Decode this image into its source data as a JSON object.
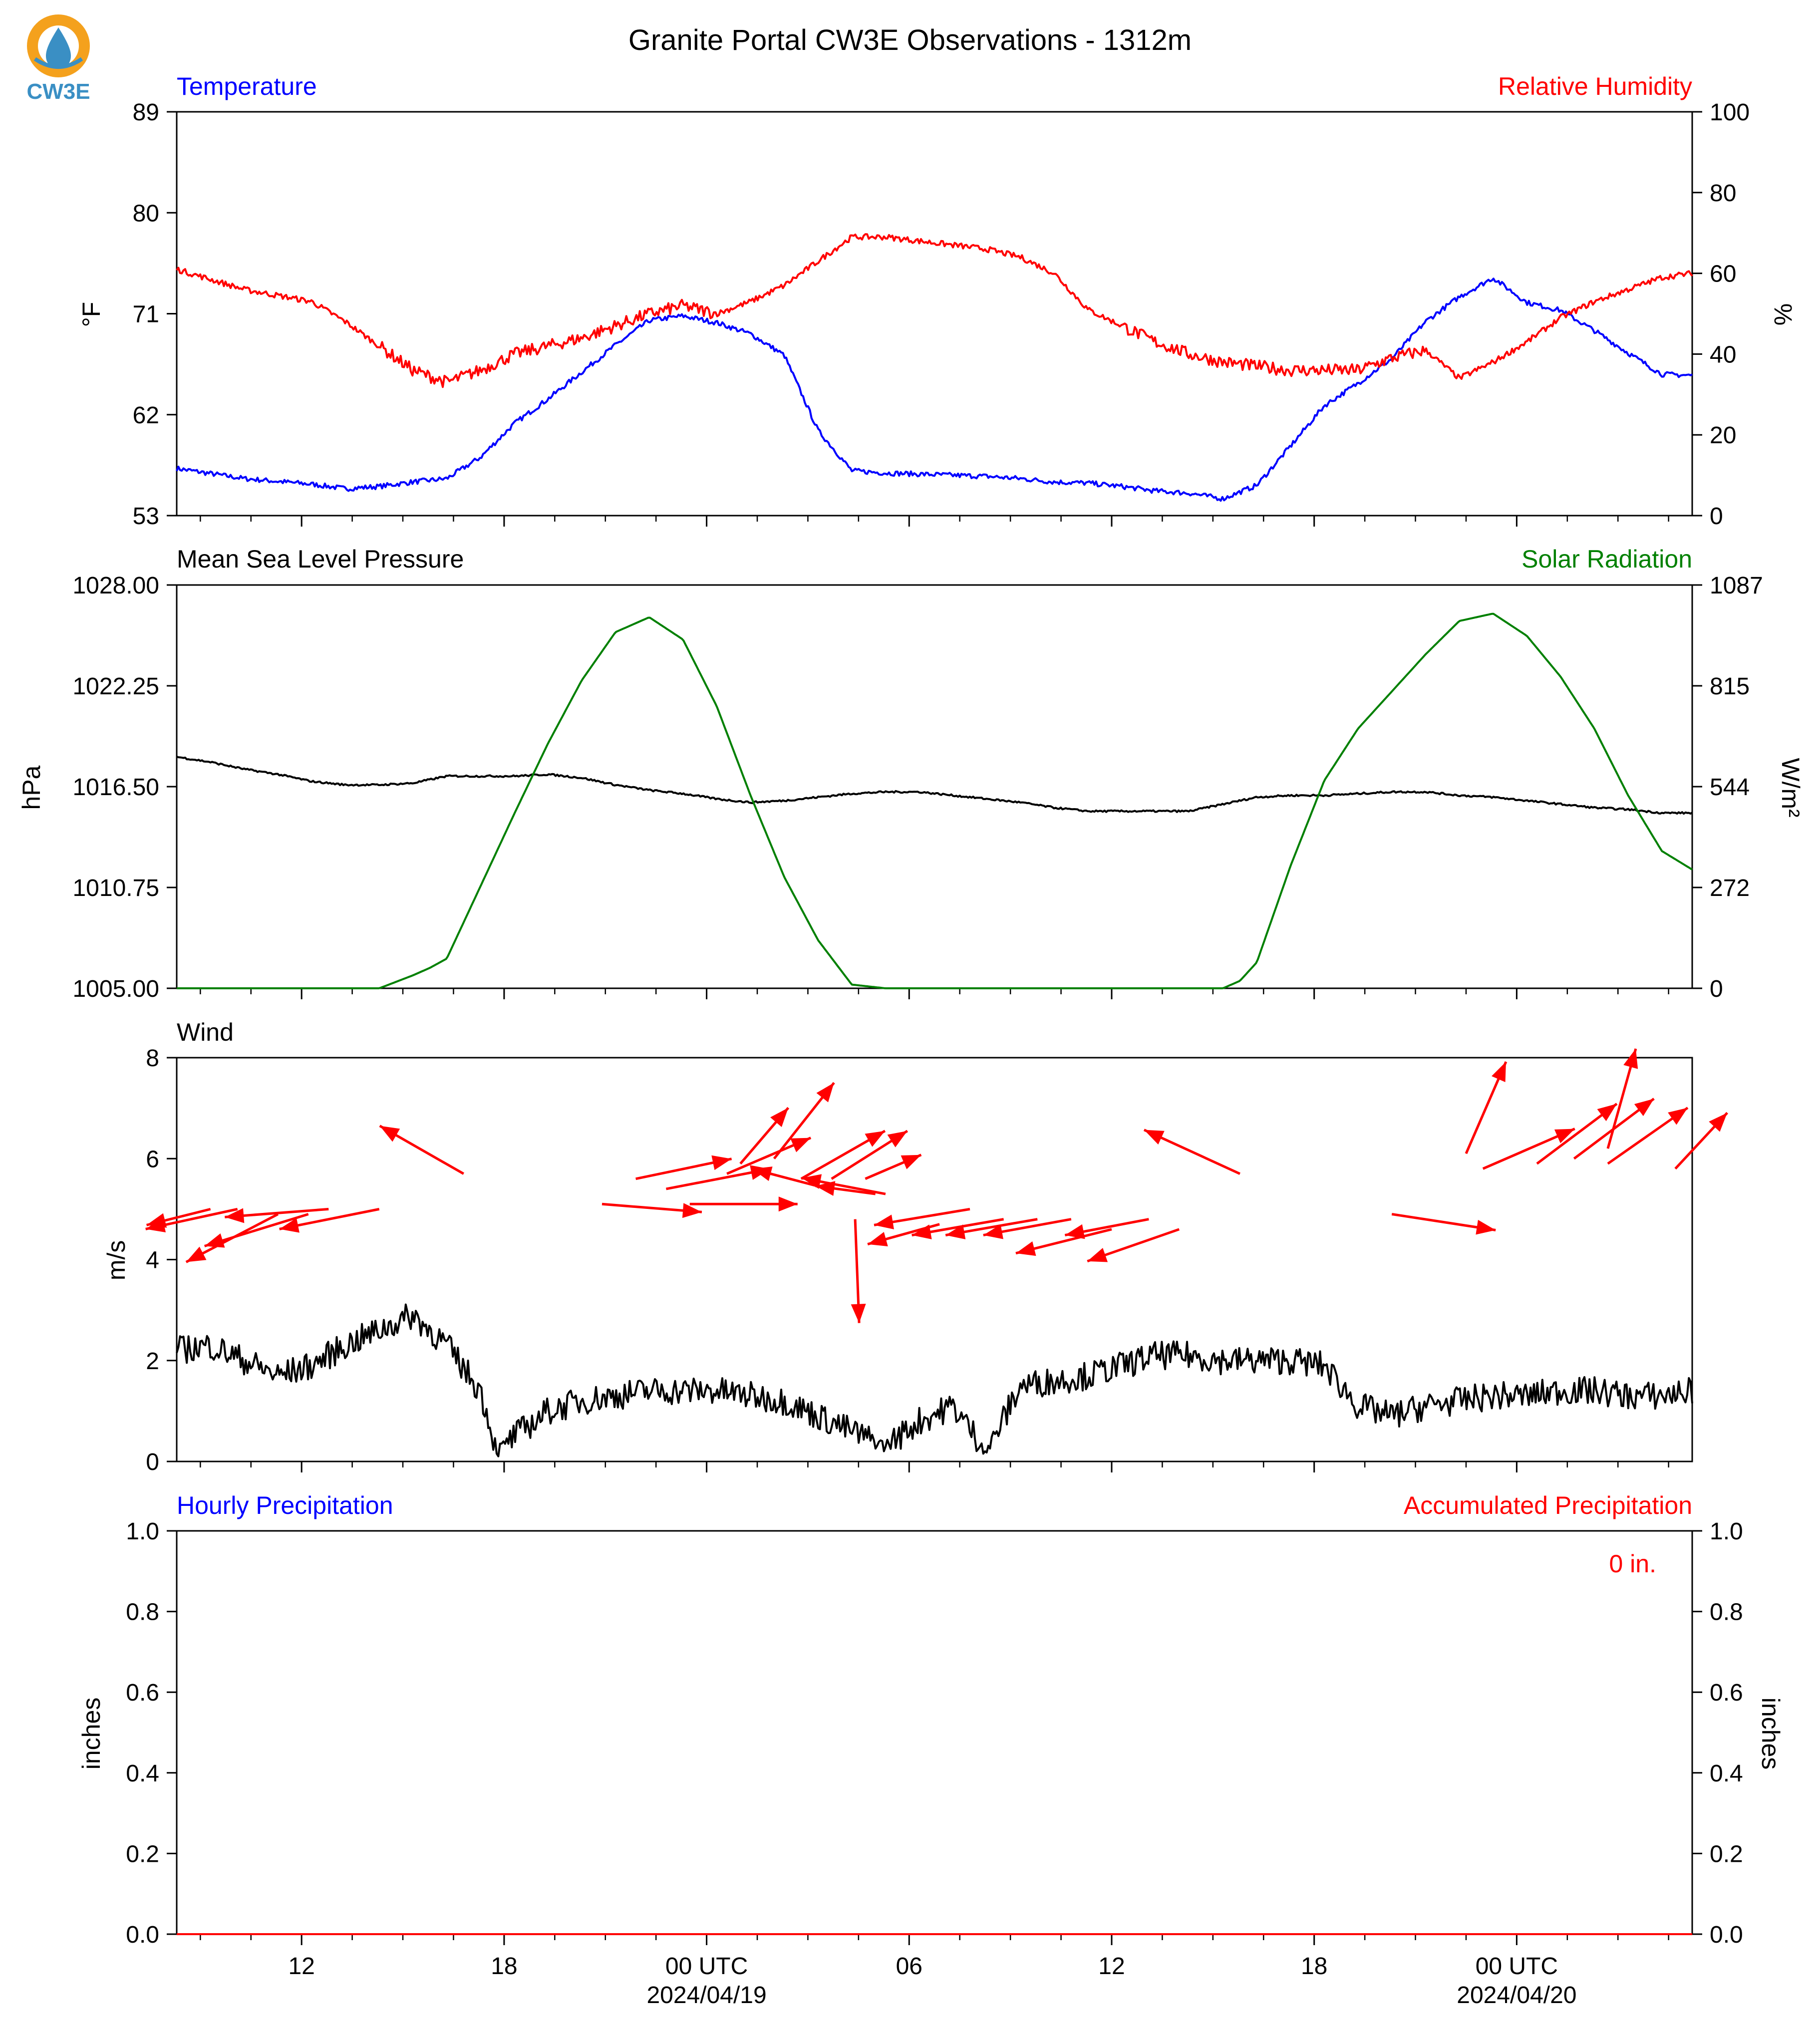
{
  "title": "Granite Portal CW3E Observations - 1312m",
  "logo": {
    "text": "CW3E",
    "ring_color": "#f4a11d",
    "drop_color": "#3a8fc4"
  },
  "x_axis": {
    "tick_labels": [
      "12",
      "18",
      "00 UTC",
      "06",
      "12",
      "18",
      "00 UTC"
    ],
    "date_labels": [
      "2024/04/19",
      "2024/04/20"
    ]
  },
  "chart_data": [
    {
      "type": "line",
      "panel": "temperature-humidity",
      "left_title": "Temperature",
      "right_title": "Relative Humidity",
      "ylabel_left": "°F",
      "ylabel_right": "%",
      "ylim_left": [
        53,
        89
      ],
      "yticks_left": [
        "53",
        "62",
        "71",
        "80",
        "89"
      ],
      "ylim_right": [
        0,
        100
      ],
      "yticks_right": [
        "0",
        "20",
        "40",
        "60",
        "80",
        "100"
      ],
      "x_hours": [
        0,
        2,
        4,
        5,
        6,
        7,
        8,
        9,
        10,
        11,
        12,
        13,
        14,
        15,
        16,
        17,
        18,
        19,
        20,
        21,
        22,
        23,
        24,
        25,
        26,
        27,
        28,
        29,
        30,
        31,
        32,
        33,
        34,
        35,
        36,
        37,
        38,
        39,
        40,
        41,
        42,
        43,
        44,
        44.9
      ],
      "series": [
        {
          "name": "Temperature",
          "color": "#0000ff",
          "axis": "left",
          "values": [
            57.2,
            56.3,
            55.8,
            55.4,
            55.6,
            56.0,
            56.3,
            58.2,
            61.2,
            63.4,
            65.8,
            68.2,
            70.4,
            70.8,
            70.2,
            69.2,
            67.3,
            60.6,
            57.0,
            56.8,
            56.7,
            56.6,
            56.5,
            56.3,
            56.0,
            55.9,
            55.6,
            55.2,
            55.0,
            54.5,
            55.7,
            59.2,
            62.8,
            64.8,
            67.0,
            70.3,
            72.5,
            74.2,
            72.0,
            71.3,
            69.5,
            67.5,
            65.6,
            65.5
          ]
        },
        {
          "name": "Relative Humidity",
          "color": "#ff0000",
          "axis": "right",
          "values": [
            61,
            56,
            53,
            48,
            42,
            36,
            33,
            36,
            40,
            42,
            44,
            47,
            50,
            52,
            50,
            53,
            57,
            63,
            69,
            69,
            68,
            67,
            66,
            64,
            60,
            51,
            47,
            43,
            40,
            38,
            37,
            36,
            36,
            36,
            39,
            41,
            34,
            38,
            43,
            49,
            53,
            56,
            59,
            60
          ]
        }
      ]
    },
    {
      "type": "line",
      "panel": "pressure-solar",
      "left_title": "Mean Sea Level Pressure",
      "right_title": "Solar Radiation",
      "ylabel_left": "hPa",
      "ylabel_right": "W/m²",
      "ylim_left": [
        1005.0,
        1028.0
      ],
      "yticks_left": [
        "1005.00",
        "1010.75",
        "1016.50",
        "1022.25",
        "1028.00"
      ],
      "ylim_right": [
        0,
        1087
      ],
      "yticks_right": [
        "0",
        "272",
        "544",
        "815",
        "1087"
      ],
      "x_hours": [
        0,
        1,
        2,
        3,
        4,
        5,
        6,
        7,
        7.5,
        8,
        9,
        10,
        11,
        12,
        13,
        14,
        15,
        16,
        17,
        18,
        19,
        20,
        21,
        22,
        23,
        24,
        25,
        26,
        27,
        28,
        29,
        30,
        31,
        31.5,
        32,
        33,
        34,
        35,
        36,
        37,
        38,
        39,
        40,
        41,
        42,
        43,
        44,
        44.9
      ],
      "series": [
        {
          "name": "Mean Sea Level Pressure",
          "color": "#000000",
          "axis": "left",
          "values": [
            1018.2,
            1017.9,
            1017.5,
            1017.2,
            1016.8,
            1016.6,
            1016.6,
            1016.7,
            1016.9,
            1017.1,
            1017.1,
            1017.1,
            1017.2,
            1017.0,
            1016.6,
            1016.3,
            1016.1,
            1015.8,
            1015.6,
            1015.7,
            1015.9,
            1016.1,
            1016.2,
            1016.2,
            1016.0,
            1015.8,
            1015.6,
            1015.3,
            1015.1,
            1015.1,
            1015.1,
            1015.1,
            1015.5,
            1015.7,
            1015.9,
            1016.0,
            1016.0,
            1016.1,
            1016.2,
            1016.2,
            1016.0,
            1015.9,
            1015.7,
            1015.5,
            1015.3,
            1015.2,
            1015.0,
            1015.0
          ]
        },
        {
          "name": "Solar Radiation",
          "color": "#008000",
          "axis": "right",
          "values": [
            0,
            0,
            0,
            0,
            0,
            0,
            0,
            35,
            55,
            80,
            275,
            470,
            660,
            830,
            960,
            1000,
            940,
            760,
            520,
            300,
            130,
            10,
            0,
            0,
            0,
            0,
            0,
            0,
            0,
            0,
            0,
            0,
            0,
            20,
            70,
            330,
            560,
            700,
            800,
            900,
            990,
            1010,
            950,
            840,
            700,
            520,
            370,
            320
          ]
        }
      ]
    },
    {
      "type": "line",
      "panel": "wind",
      "left_title": "Wind",
      "ylabel_left": "m/s",
      "ylim_left": [
        0,
        8
      ],
      "yticks_left": [
        "0",
        "2",
        "4",
        "6",
        "8"
      ],
      "x_hours": [
        0,
        1,
        2,
        3,
        4,
        5,
        6,
        7,
        7.5,
        8,
        9,
        9.5,
        10,
        11,
        12,
        13,
        14,
        15,
        16,
        17,
        18,
        19,
        20,
        21,
        22,
        23,
        24,
        25,
        26,
        27,
        28,
        29,
        30,
        31,
        32,
        33,
        34,
        35,
        36,
        37,
        38,
        39,
        40,
        41,
        42,
        43,
        44,
        44.9
      ],
      "series": [
        {
          "name": "Wind Speed",
          "color": "#000000",
          "axis": "left",
          "values": [
            2.2,
            2.3,
            2.0,
            1.7,
            1.9,
            2.3,
            2.6,
            2.9,
            2.6,
            2.3,
            1.4,
            0.2,
            0.5,
            1.0,
            1.2,
            1.3,
            1.4,
            1.4,
            1.4,
            1.3,
            1.2,
            0.9,
            0.6,
            0.3,
            0.8,
            1.1,
            0.2,
            1.5,
            1.6,
            1.7,
            1.9,
            2.1,
            2.1,
            2.0,
            2.0,
            2.0,
            1.9,
            1.1,
            0.9,
            1.1,
            1.2,
            1.3,
            1.3,
            1.4,
            1.4,
            1.3,
            1.3,
            1.4
          ]
        }
      ],
      "barbs": [
        {
          "x_hour": 1.0,
          "level": 5.0,
          "u": -1.6,
          "v": -0.4
        },
        {
          "x_hour": 1.8,
          "level": 5.0,
          "u": -2.3,
          "v": -0.5
        },
        {
          "x_hour": 3.0,
          "level": 4.9,
          "u": -2.3,
          "v": -1.2
        },
        {
          "x_hour": 3.9,
          "level": 4.9,
          "u": -2.6,
          "v": -0.8
        },
        {
          "x_hour": 4.5,
          "level": 5.0,
          "u": -2.6,
          "v": -0.2
        },
        {
          "x_hour": 6.0,
          "level": 5.0,
          "u": -2.5,
          "v": -0.5
        },
        {
          "x_hour": 8.5,
          "level": 5.7,
          "u": -2.1,
          "v": 1.2
        },
        {
          "x_hour": 12.6,
          "level": 5.1,
          "u": 2.5,
          "v": -0.2
        },
        {
          "x_hour": 13.6,
          "level": 5.6,
          "u": 2.4,
          "v": 0.5
        },
        {
          "x_hour": 14.5,
          "level": 5.4,
          "u": 2.6,
          "v": 0.5
        },
        {
          "x_hour": 15.2,
          "level": 5.1,
          "u": 2.7,
          "v": 0.0
        },
        {
          "x_hour": 16.3,
          "level": 5.7,
          "u": 2.1,
          "v": 0.9
        },
        {
          "x_hour": 16.7,
          "level": 5.9,
          "u": 1.2,
          "v": 1.4
        },
        {
          "x_hour": 17.7,
          "level": 6.0,
          "u": 1.5,
          "v": 1.9
        },
        {
          "x_hour": 18.5,
          "level": 5.6,
          "u": 2.1,
          "v": 1.2
        },
        {
          "x_hour": 19.4,
          "level": 5.6,
          "u": 1.9,
          "v": 1.2
        },
        {
          "x_hour": 19.3,
          "level": 5.4,
          "u": -1.9,
          "v": 0.5
        },
        {
          "x_hour": 20.7,
          "level": 5.3,
          "u": -1.5,
          "v": 0.2
        },
        {
          "x_hour": 20.4,
          "level": 5.6,
          "u": 1.4,
          "v": 0.6
        },
        {
          "x_hour": 21.0,
          "level": 5.3,
          "u": -2.1,
          "v": 0.4
        },
        {
          "x_hour": 20.1,
          "level": 4.8,
          "u": 0.1,
          "v": -2.6
        },
        {
          "x_hour": 22.6,
          "level": 4.7,
          "u": -1.8,
          "v": -0.5
        },
        {
          "x_hour": 23.5,
          "level": 5.0,
          "u": -2.4,
          "v": -0.4
        },
        {
          "x_hour": 24.5,
          "level": 4.8,
          "u": -2.3,
          "v": -0.4
        },
        {
          "x_hour": 25.5,
          "level": 4.8,
          "u": -2.3,
          "v": -0.4
        },
        {
          "x_hour": 26.5,
          "level": 4.8,
          "u": -2.2,
          "v": -0.4
        },
        {
          "x_hour": 27.7,
          "level": 4.6,
          "u": -2.4,
          "v": -0.6
        },
        {
          "x_hour": 28.8,
          "level": 4.8,
          "u": -2.1,
          "v": -0.4
        },
        {
          "x_hour": 29.7,
          "level": 4.6,
          "u": -2.3,
          "v": -0.8
        },
        {
          "x_hour": 31.5,
          "level": 5.7,
          "u": -2.4,
          "v": 1.1
        },
        {
          "x_hour": 36.0,
          "level": 4.9,
          "u": 2.6,
          "v": -0.4
        },
        {
          "x_hour": 38.2,
          "level": 6.1,
          "u": 1.0,
          "v": 2.3
        },
        {
          "x_hour": 38.7,
          "level": 5.8,
          "u": 2.3,
          "v": 1.0
        },
        {
          "x_hour": 40.3,
          "level": 5.9,
          "u": 2.0,
          "v": 1.5
        },
        {
          "x_hour": 41.4,
          "level": 6.0,
          "u": 2.0,
          "v": 1.5
        },
        {
          "x_hour": 42.4,
          "level": 6.2,
          "u": 0.7,
          "v": 2.5
        },
        {
          "x_hour": 42.4,
          "level": 5.9,
          "u": 2.0,
          "v": 1.4
        },
        {
          "x_hour": 44.4,
          "level": 5.8,
          "u": 1.3,
          "v": 1.4
        }
      ]
    },
    {
      "type": "bar",
      "panel": "precipitation",
      "left_title": "Hourly Precipitation",
      "right_title": "Accumulated Precipitation",
      "ylabel_left": "inches",
      "ylabel_right": "inches",
      "ylim_left": [
        0.0,
        1.0
      ],
      "yticks_left": [
        "0.0",
        "0.2",
        "0.4",
        "0.6",
        "0.8",
        "1.0"
      ],
      "ylim_right": [
        0.0,
        1.0
      ],
      "yticks_right": [
        "0.0",
        "0.2",
        "0.4",
        "0.6",
        "0.8",
        "1.0"
      ],
      "annotation": "0 in.",
      "x_hours": [
        0,
        44.9
      ],
      "series": [
        {
          "name": "Hourly Precipitation",
          "color": "#0000ff",
          "axis": "left",
          "values": [
            0,
            0
          ]
        },
        {
          "name": "Accumulated Precipitation",
          "color": "#ff0000",
          "axis": "right",
          "values": [
            0,
            0
          ]
        }
      ]
    }
  ]
}
